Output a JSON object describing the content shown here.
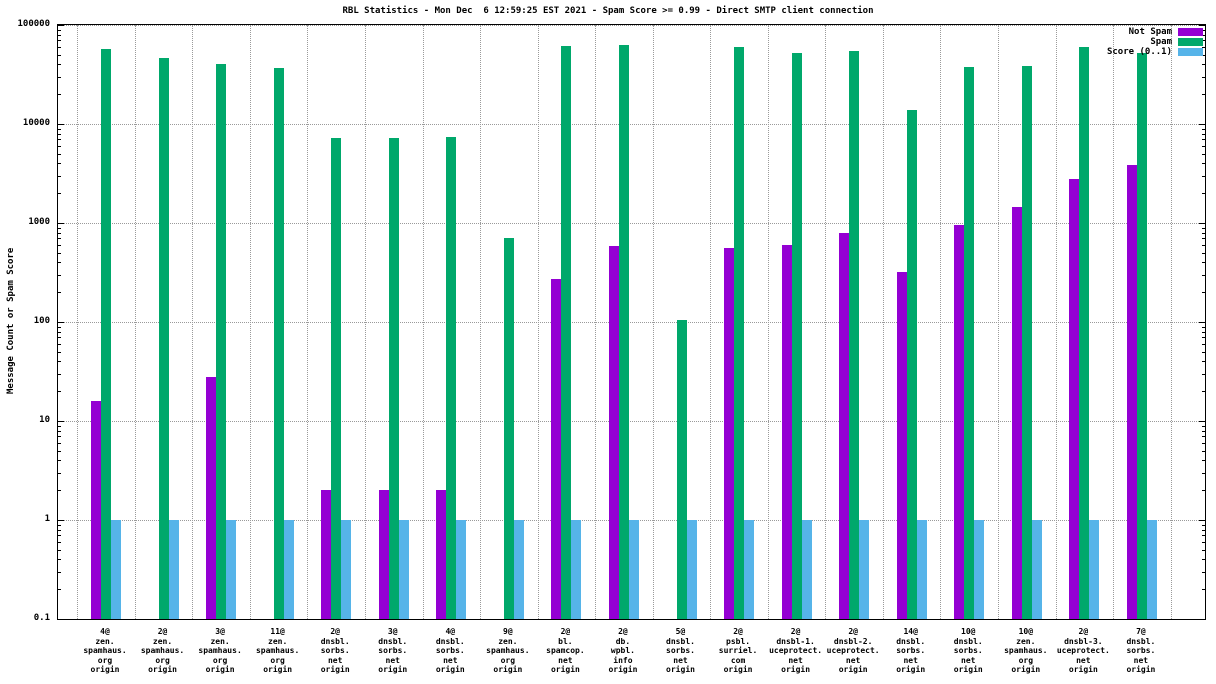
{
  "chart_data": {
    "type": "bar",
    "title": "RBL Statistics - Mon Dec  6 12:59:25 EST 2021 - Spam Score >= 0.99 - Direct SMTP client connection",
    "ylabel": "Message Count or Spam Score",
    "y_scale": "log",
    "ylim": [
      0.1,
      100000
    ],
    "y_ticks": [
      "100000",
      "10000",
      "1000",
      "100",
      "10",
      "1",
      "0.1"
    ],
    "grid": true,
    "legend_position": "top-right-inside",
    "categories": [
      [
        "4@",
        "zen.",
        "spamhaus.",
        "org",
        "origin"
      ],
      [
        "2@",
        "zen.",
        "spamhaus.",
        "org",
        "origin"
      ],
      [
        "3@",
        "zen.",
        "spamhaus.",
        "org",
        "origin"
      ],
      [
        "11@",
        "zen.",
        "spamhaus.",
        "org",
        "origin"
      ],
      [
        "2@",
        "dnsbl.",
        "sorbs.",
        "net",
        "origin"
      ],
      [
        "3@",
        "dnsbl.",
        "sorbs.",
        "net",
        "origin"
      ],
      [
        "4@",
        "dnsbl.",
        "sorbs.",
        "net",
        "origin"
      ],
      [
        "9@",
        "zen.",
        "spamhaus.",
        "org",
        "origin"
      ],
      [
        "2@",
        "bl.",
        "spamcop.",
        "net",
        "origin"
      ],
      [
        "2@",
        "db.",
        "wpbl.",
        "info",
        "origin"
      ],
      [
        "5@",
        "dnsbl.",
        "sorbs.",
        "net",
        "origin"
      ],
      [
        "2@",
        "psbl.",
        "surriel.",
        "com",
        "origin"
      ],
      [
        "2@",
        "dnsbl-1.",
        "uceprotect.",
        "net",
        "origin"
      ],
      [
        "2@",
        "dnsbl-2.",
        "uceprotect.",
        "net",
        "origin"
      ],
      [
        "14@",
        "dnsbl.",
        "sorbs.",
        "net",
        "origin"
      ],
      [
        "10@",
        "dnsbl.",
        "sorbs.",
        "net",
        "origin"
      ],
      [
        "10@",
        "zen.",
        "spamhaus.",
        "org",
        "origin"
      ],
      [
        "2@",
        "dnsbl-3.",
        "uceprotect.",
        "net",
        "origin"
      ],
      [
        "7@",
        "dnsbl.",
        "sorbs.",
        "net",
        "origin"
      ]
    ],
    "series": [
      {
        "name": "Not Spam",
        "color": "#9400d3",
        "values": [
          16,
          null,
          28,
          null,
          2,
          2,
          2,
          null,
          270,
          580,
          null,
          560,
          600,
          800,
          320,
          950,
          1450,
          2800,
          3900
        ]
      },
      {
        "name": "Spam",
        "color": "#00a86b",
        "values": [
          57000,
          46000,
          40000,
          37000,
          7200,
          7200,
          7400,
          700,
          62000,
          63000,
          105,
          60000,
          52000,
          55000,
          14000,
          38000,
          38500,
          60000,
          52000
        ]
      },
      {
        "name": "Score (0..1)",
        "color": "#56b4e9",
        "values": [
          1,
          1,
          1,
          1,
          1,
          1,
          1,
          1,
          1,
          1,
          1,
          1,
          1,
          1,
          1,
          1,
          1,
          1,
          1
        ]
      }
    ]
  }
}
